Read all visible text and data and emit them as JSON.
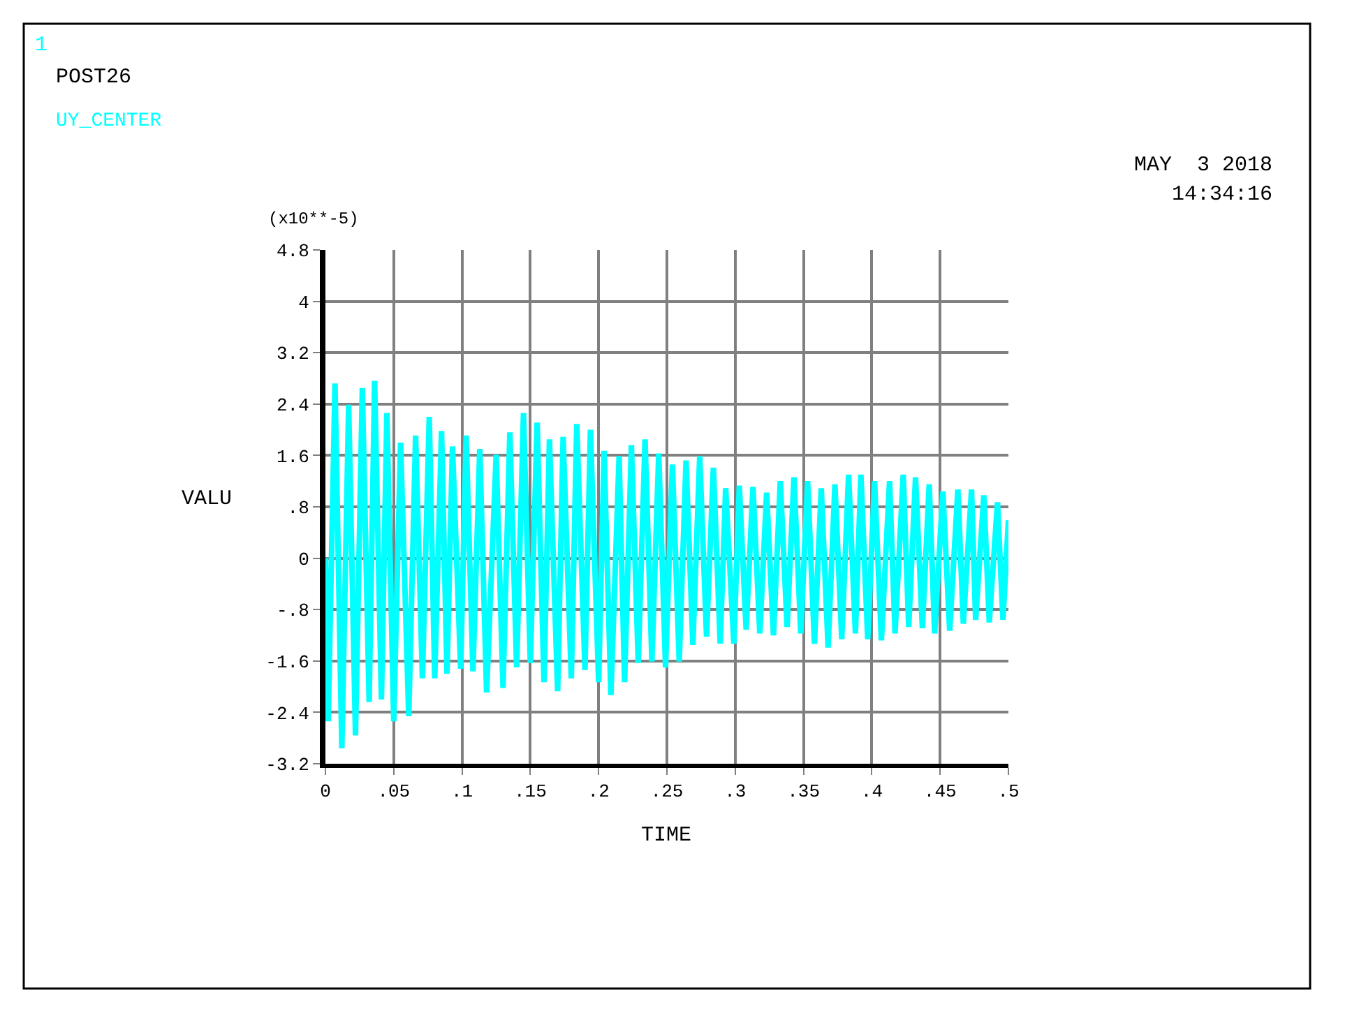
{
  "chart_data": {
    "type": "line",
    "title": "POST26",
    "xlabel": "TIME",
    "ylabel": "VALU",
    "annotations": [
      "1",
      "(x10**-5)",
      "MAY  3 2018",
      "14:34:16"
    ],
    "x": [
      0,
      0.002,
      0.007,
      0.012,
      0.017,
      0.022,
      0.027,
      0.032,
      0.036,
      0.041,
      0.045,
      0.05,
      0.055,
      0.061,
      0.066,
      0.071,
      0.076,
      0.08,
      0.085,
      0.089,
      0.093,
      0.099,
      0.103,
      0.108,
      0.113,
      0.118,
      0.125,
      0.13,
      0.135,
      0.14,
      0.145,
      0.15,
      0.155,
      0.16,
      0.164,
      0.17,
      0.174,
      0.18,
      0.184,
      0.19,
      0.194,
      0.2,
      0.204,
      0.209,
      0.215,
      0.219,
      0.224,
      0.229,
      0.234,
      0.239,
      0.244,
      0.249,
      0.254,
      0.259,
      0.264,
      0.269,
      0.274,
      0.279,
      0.284,
      0.289,
      0.293,
      0.299,
      0.303,
      0.308,
      0.313,
      0.318,
      0.323,
      0.328,
      0.333,
      0.338,
      0.343,
      0.348,
      0.353,
      0.358,
      0.363,
      0.368,
      0.373,
      0.378,
      0.383,
      0.388,
      0.392,
      0.397,
      0.402,
      0.407,
      0.413,
      0.417,
      0.423,
      0.427,
      0.432,
      0.437,
      0.442,
      0.446,
      0.452,
      0.457,
      0.463,
      0.467,
      0.473,
      0.476,
      0.482,
      0.486,
      0.492,
      0.496,
      0.5
    ],
    "series": [
      {
        "name": "UY_CENTER",
        "color": "#00ffff",
        "values": [
          0,
          -2.54,
          2.72,
          -2.96,
          2.39,
          -2.76,
          2.65,
          -2.24,
          2.76,
          -2.2,
          2.26,
          -2.54,
          1.8,
          -2.46,
          1.91,
          -1.87,
          2.2,
          -1.87,
          1.98,
          -1.8,
          1.74,
          -1.72,
          1.91,
          -1.76,
          1.7,
          -2.09,
          1.61,
          -2.02,
          1.96,
          -1.7,
          2.26,
          -1.63,
          2.11,
          -1.93,
          1.85,
          -2.07,
          1.89,
          -1.87,
          2.09,
          -1.74,
          2.0,
          -1.93,
          1.67,
          -2.13,
          1.59,
          -1.93,
          1.76,
          -1.63,
          1.85,
          -1.61,
          1.63,
          -1.7,
          1.46,
          -1.61,
          1.52,
          -1.35,
          1.59,
          -1.22,
          1.41,
          -1.33,
          1.09,
          -1.33,
          1.13,
          -1.11,
          1.11,
          -1.17,
          1.02,
          -1.2,
          1.2,
          -1.07,
          1.26,
          -1.17,
          1.2,
          -1.33,
          1.09,
          -1.39,
          1.15,
          -1.26,
          1.3,
          -1.17,
          1.3,
          -1.26,
          1.2,
          -1.28,
          1.2,
          -1.17,
          1.3,
          -1.07,
          1.26,
          -1.09,
          1.15,
          -1.17,
          1.04,
          -1.13,
          1.07,
          -1.02,
          1.07,
          -0.96,
          0.98,
          -1.0,
          0.87,
          -0.96,
          0.59
        ]
      }
    ],
    "xlim": [
      0,
      0.5
    ],
    "xticks": [
      0,
      {
        "value": 0.05,
        "label": ".05"
      },
      {
        "value": 0.1,
        "label": ".1"
      },
      {
        "value": 0.15,
        "label": ".15"
      },
      {
        "value": 0.2,
        "label": ".2"
      },
      {
        "value": 0.25,
        "label": ".25"
      },
      {
        "value": 0.3,
        "label": ".3"
      },
      {
        "value": 0.35,
        "label": ".35"
      },
      {
        "value": 0.4,
        "label": ".4"
      },
      {
        "value": 0.45,
        "label": ".45"
      },
      {
        "value": 0.5,
        "label": ".5"
      }
    ],
    "ylim": [
      -3.2,
      4.8
    ],
    "yticks": [
      -3.2,
      -2.4,
      -1.6,
      {
        "value": -0.8,
        "label": "-.8"
      },
      0,
      {
        "value": 0.8,
        "label": ".8"
      },
      1.6,
      2.4,
      3.2,
      4,
      4.8
    ],
    "grid": true,
    "legend": false,
    "line_style": "solid",
    "marker": "none"
  }
}
